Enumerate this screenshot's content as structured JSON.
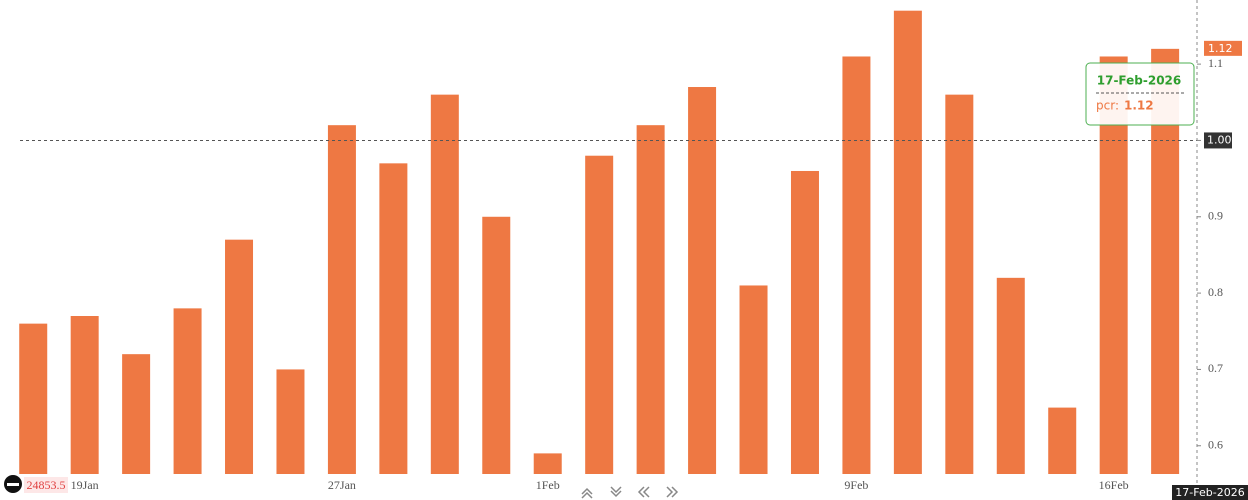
{
  "chart_data": {
    "type": "bar",
    "categories": [
      null,
      "19Jan",
      null,
      null,
      null,
      null,
      "27Jan",
      null,
      null,
      null,
      "1Feb",
      null,
      null,
      null,
      null,
      null,
      "9Feb",
      null,
      null,
      null,
      null,
      "16Feb",
      null
    ],
    "series": [
      {
        "name": "pcr",
        "color": "#ee7843",
        "values": [
          0.76,
          0.77,
          0.72,
          0.78,
          0.87,
          0.7,
          1.02,
          0.97,
          1.06,
          0.9,
          0.59,
          0.98,
          1.02,
          1.07,
          0.81,
          0.96,
          1.11,
          1.17,
          1.06,
          0.82,
          0.65,
          1.11,
          1.12
        ]
      }
    ],
    "ylim": [
      0.563,
      1.184
    ],
    "yticks": [
      0.6,
      0.7,
      0.8,
      0.9,
      1,
      1.1
    ],
    "reference_line": {
      "value": 1,
      "label": "1.00"
    },
    "crosshair_date": "17-Feb-2026",
    "tooltip_label": "pcr:",
    "index_value": 24853.5
  }
}
